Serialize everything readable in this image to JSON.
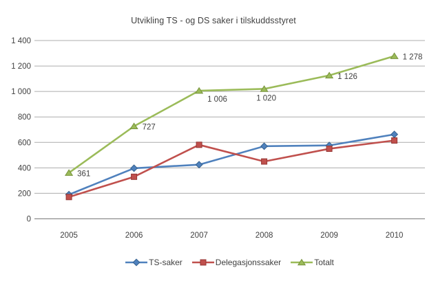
{
  "title": "Utvikling TS - og DS saker i tilskuddsstyret",
  "chart_data": {
    "type": "line",
    "title": "Utvikling TS - og DS saker i tilskuddsstyret",
    "categories": [
      "2005",
      "2006",
      "2007",
      "2008",
      "2009",
      "2010"
    ],
    "series": [
      {
        "name": "TS-saker",
        "color": "#4F81BD",
        "border_color": "#35618E",
        "marker": "diamond",
        "values": [
          190,
          397,
          425,
          570,
          576,
          663
        ]
      },
      {
        "name": "Delegasjonssaker",
        "color": "#C0504D",
        "border_color": "#943634",
        "marker": "square",
        "values": [
          171,
          330,
          581,
          450,
          550,
          615
        ]
      },
      {
        "name": "Totalt",
        "color": "#9BBB59",
        "border_color": "#77933C",
        "marker": "triangle",
        "values": [
          361,
          727,
          1006,
          1020,
          1126,
          1278
        ],
        "data_labels": [
          "361",
          "727",
          "1 006",
          "1 020",
          "1 126",
          "1 278"
        ],
        "label_positions": [
          "right",
          "right",
          "below-right",
          "below",
          "right",
          "right"
        ]
      }
    ],
    "ylim": [
      0,
      1400
    ],
    "ytick_step": 200,
    "ytick_labels": [
      "0",
      "200",
      "400",
      "600",
      "800",
      "1 000",
      "1 200",
      "1 400"
    ],
    "xlabel": "",
    "ylabel": "",
    "grid": true,
    "legend_position": "bottom",
    "grid_color": "#ACACAC",
    "axis_color": "#8C8C8C",
    "text_color": "#3F3F3F"
  }
}
